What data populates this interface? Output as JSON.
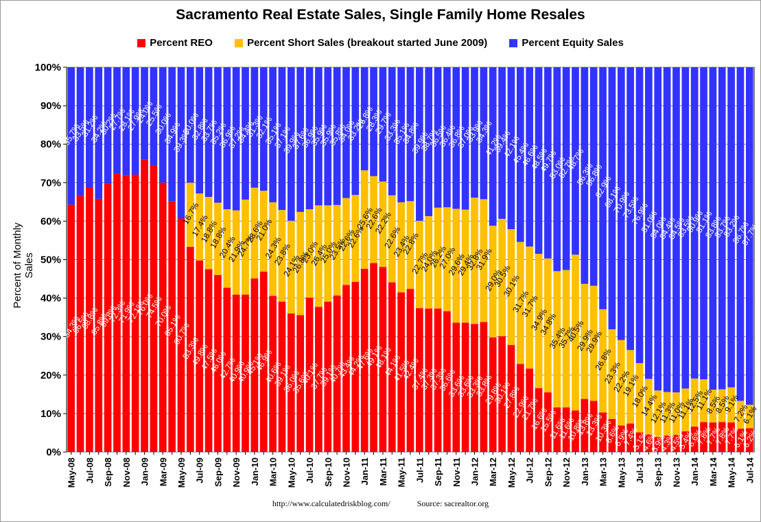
{
  "title": "Sacramento Real Estate Sales, Single Family Home Resales",
  "legend": [
    {
      "label": "Percent REO",
      "color": "#ff0000"
    },
    {
      "label": "Percent Short Sales (breakout started June 2009)",
      "color": "#ffc000"
    },
    {
      "label": "Percent Equity Sales",
      "color": "#3333ff"
    }
  ],
  "footer": {
    "url": "http://www.calculatedriskblog.com/",
    "source": "Source:  sacrealtor.org"
  },
  "chart_data": {
    "type": "bar",
    "stacked": true,
    "title": "Sacramento Real Estate Sales, Single Family Home Resales",
    "ylabel": "Percent of Monthly Sales",
    "xlabel": "",
    "ylim": [
      0,
      100
    ],
    "yticks": [
      "0%",
      "10%",
      "20%",
      "30%",
      "40%",
      "50%",
      "60%",
      "70%",
      "80%",
      "90%",
      "100%"
    ],
    "grid": true,
    "legend_position": "top",
    "categories": [
      "May-08",
      "Jun-08",
      "Jul-08",
      "Aug-08",
      "Sep-08",
      "Oct-08",
      "Nov-08",
      "Dec-08",
      "Jan-09",
      "Feb-09",
      "Mar-09",
      "Apr-09",
      "May-09",
      "Jun-09",
      "Jul-09",
      "Aug-09",
      "Sep-09",
      "Oct-09",
      "Nov-09",
      "Dec-09",
      "Jan-10",
      "Feb-10",
      "Mar-10",
      "Apr-10",
      "May-10",
      "Jun-10",
      "Jul-10",
      "Aug-10",
      "Sep-10",
      "Oct-10",
      "Nov-10",
      "Dec-10",
      "Jan-11",
      "Feb-11",
      "Mar-11",
      "Apr-11",
      "May-11",
      "Jun-11",
      "Jul-11",
      "Aug-11",
      "Sep-11",
      "Oct-11",
      "Nov-11",
      "Dec-11",
      "Jan-12",
      "Feb-12",
      "Mar-12",
      "Apr-12",
      "May-12",
      "Jun-12",
      "Jul-12",
      "Aug-12",
      "Sep-12",
      "Oct-12",
      "Nov-12",
      "Dec-12",
      "Jan-13",
      "Feb-13",
      "Mar-13",
      "Apr-13",
      "May-13",
      "Jun-13",
      "Jul-13",
      "Aug-13",
      "Sep-13",
      "Oct-13",
      "Nov-13",
      "Dec-13",
      "Jan-14",
      "Feb-14",
      "Mar-14",
      "Apr-14",
      "May-14",
      "Jun-14",
      "Jul-14"
    ],
    "series": [
      {
        "name": "Percent REO",
        "color": "#ff0000",
        "values": [
          64.3,
          66.5,
          68.8,
          65.8,
          69.8,
          72.3,
          71.9,
          72.1,
          76.0,
          74.5,
          70.0,
          65.1,
          60.7,
          53.3,
          49.8,
          47.5,
          46.0,
          42.7,
          40.9,
          40.9,
          45.1,
          46.9,
          40.6,
          39.1,
          36.0,
          35.6,
          40.1,
          37.7,
          39.1,
          40.7,
          43.4,
          44.2,
          47.6,
          49.1,
          48.1,
          44.1,
          41.5,
          42.4,
          37.4,
          37.3,
          37.3,
          36.6,
          33.6,
          33.6,
          33.3,
          33.8,
          29.8,
          30.1,
          27.8,
          22.9,
          21.7,
          16.6,
          15.5,
          11.6,
          11.6,
          10.8,
          13.8,
          13.3,
          10.3,
          8.6,
          6.9,
          7.4,
          5.1,
          4.6,
          3.9,
          4.3,
          4.5,
          5.4,
          6.6,
          7.8,
          7.7,
          7.8,
          7.7,
          6.1,
          6.2
        ]
      },
      {
        "name": "Percent Short Sales (breakout started June 2009)",
        "color": "#ffc000",
        "values": [
          0,
          0,
          0,
          0,
          0,
          0,
          0,
          0,
          0,
          0,
          0,
          0,
          0,
          16.7,
          17.4,
          18.8,
          18.8,
          20.4,
          21.9,
          24.7,
          23.6,
          21.0,
          24.3,
          23.8,
          24.1,
          26.8,
          23.0,
          26.4,
          25.0,
          23.5,
          22.6,
          22.6,
          25.6,
          22.6,
          22.2,
          22.6,
          23.4,
          22.8,
          22.7,
          24.0,
          26.2,
          27.0,
          29.6,
          29.4,
          32.8,
          31.9,
          29.0,
          30.5,
          30.1,
          31.7,
          31.7,
          34.9,
          34.8,
          35.4,
          35.7,
          40.5,
          29.9,
          29.9,
          26.8,
          23.3,
          22.2,
          19.1,
          18.0,
          14.4,
          12.1,
          11.3,
          11.0,
          11.1,
          12.5,
          11.1,
          8.5,
          8.5,
          9.1,
          7.2,
          6.1
        ]
      },
      {
        "name": "Percent Equity Sales",
        "color": "#3333ff",
        "values": [
          35.7,
          33.5,
          31.2,
          34.2,
          30.2,
          27.7,
          28.1,
          27.9,
          24.0,
          25.5,
          30.0,
          34.9,
          39.3,
          30.0,
          32.8,
          33.7,
          35.2,
          36.9,
          37.2,
          34.4,
          31.3,
          32.1,
          35.1,
          37.1,
          39.9,
          37.6,
          36.9,
          35.9,
          35.9,
          35.8,
          34.0,
          33.2,
          26.8,
          28.3,
          29.7,
          33.3,
          35.1,
          34.8,
          39.9,
          38.7,
          36.5,
          36.4,
          36.8,
          37.0,
          33.9,
          34.3,
          41.2,
          39.4,
          42.1,
          45.4,
          46.6,
          48.5,
          49.7,
          53.0,
          52.7,
          48.7,
          56.3,
          56.8,
          62.9,
          68.1,
          70.9,
          73.5,
          76.9,
          81.0,
          84.0,
          84.4,
          84.5,
          83.5,
          80.9,
          81.1,
          83.8,
          83.7,
          83.2,
          86.7,
          87.7
        ]
      }
    ]
  }
}
